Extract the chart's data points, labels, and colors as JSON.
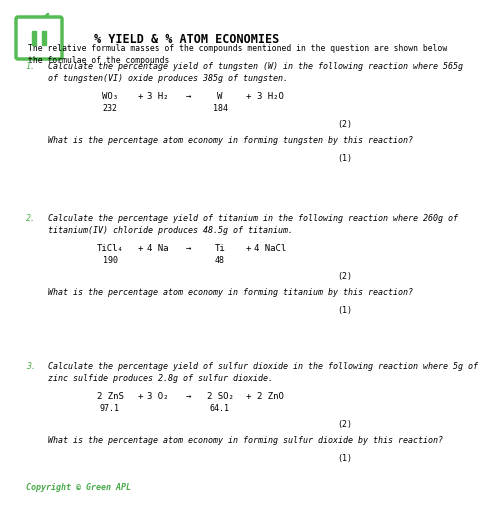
{
  "title": "% YIELD & % ATOM ECONOMIES",
  "intro": "The relative formula masses of the compounds mentioned in the question are shown below\nthe formulae of the compounds",
  "background_color": "#ffffff",
  "text_color": "#000000",
  "green_color": "#4aaa4a",
  "logo_border": "#55bb55",
  "questions": [
    {
      "number": "1.",
      "text": "Calculate the percentage yield of tungsten (W) in the following reaction where 565g\nof tungsten(VI) oxide produces 385g of tungsten.",
      "equation_parts": [
        "WO₃",
        "+",
        "3 H₂",
        "→",
        "W",
        "+",
        "3 H₂O"
      ],
      "equation_masses": [
        "232",
        "",
        "",
        "",
        "184",
        "",
        ""
      ],
      "marks1": "(2)",
      "question2": "What is the percentage atom economy in forming tungsten by this reaction?",
      "marks2": "(1)"
    },
    {
      "number": "2.",
      "text": "Calculate the percentage yield of titanium in the following reaction where 260g of\ntitanium(IV) chloride produces 48.5g of titanium.",
      "equation_parts": [
        "TiCl₄",
        "+",
        "4 Na",
        "→",
        "Ti",
        "+",
        "4 NaCl"
      ],
      "equation_masses": [
        "190",
        "",
        "",
        "",
        "48",
        "",
        ""
      ],
      "marks1": "(2)",
      "question2": "What is the percentage atom economy in forming titanium by this reaction?",
      "marks2": "(1)"
    },
    {
      "number": "3.",
      "text": "Calculate the percentage yield of sulfur dioxide in the following reaction where 5g of\nzinc sulfide produces 2.8g of sulfur dioxide.",
      "equation_parts": [
        "2 ZnS",
        "+",
        "3 O₂",
        "→",
        "2 SO₂",
        "+",
        "2 ZnO"
      ],
      "equation_masses": [
        "97.1",
        "",
        "",
        "",
        "64.1",
        "",
        ""
      ],
      "marks1": "(2)",
      "question2": "What is the percentage atom economy in forming sulfur dioxide by this reaction?",
      "marks2": "(1)"
    }
  ],
  "copyright": "Copyright © Green APL"
}
